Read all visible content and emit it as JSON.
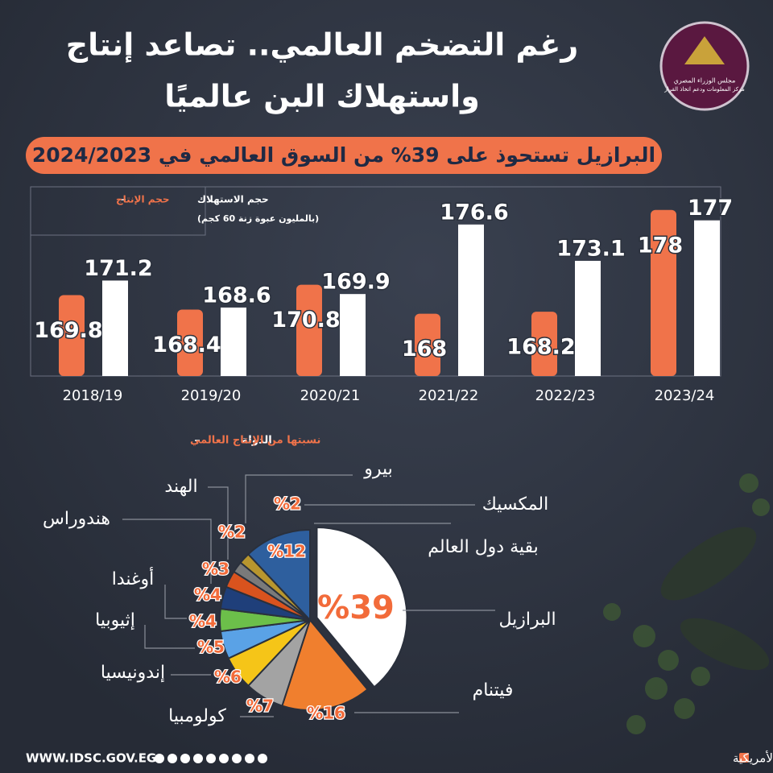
{
  "header": {
    "title_lines": [
      "رغم التضخم العالمي.. تصاعد إنتاج",
      "واستهلاك البن عالميًا"
    ],
    "subtitle": "البرازيل تستحوذ على 39% من السوق العالمي في 2024/2023",
    "logo_lines": [
      "مجلس الوزراء المصري",
      "مركز المعلومات ودعم اتخاذ القرار"
    ]
  },
  "chart_data": [
    {
      "type": "bar",
      "legend_note": "(بالمليون عبوة زنة 60 كجم)",
      "categories": [
        "2018/19",
        "2019/20",
        "2020/21",
        "2021/22",
        "2022/23",
        "2023/24"
      ],
      "series": [
        {
          "name": "حجم الإنتاج",
          "color": "#f0734a",
          "values": [
            169.8,
            168.4,
            170.8,
            168,
            168.2,
            178
          ]
        },
        {
          "name": "حجم الاستهلاك",
          "color": "#ffffff",
          "values": [
            171.2,
            168.6,
            169.9,
            176.6,
            173.1,
            177
          ]
        }
      ],
      "ylim": [
        162,
        180
      ]
    },
    {
      "type": "pie",
      "title_parts": [
        "الدولة",
        "نسبتها من الإنتاج العالمي"
      ],
      "categories": [
        "البرازيل",
        "فيتنام",
        "كولومبيا",
        "إندونيسيا",
        "إثيوبيا",
        "أوغندا",
        "هندوراس",
        "الهند",
        "بيرو",
        "المكسيك",
        "بقية دول العالم"
      ],
      "values": [
        39,
        16,
        7,
        6,
        5,
        4,
        4,
        3,
        2,
        2,
        12
      ],
      "value_labels": [
        "%39",
        "%16",
        "%7",
        "%6",
        "%5",
        "%4",
        "%4",
        "%3",
        "%2",
        "%2",
        "%12"
      ],
      "colors": [
        "#ffffff",
        "#f07f2e",
        "#a3a3a3",
        "#f5c518",
        "#5aa2e6",
        "#6cbf4a",
        "#1f3f7a",
        "#d9531e",
        "#7a7a7a",
        "#b8962e",
        "#2e5f9e"
      ]
    }
  ],
  "footer": {
    "website": "WWW.IDSC.GOV.EG",
    "source": "المصدر: المنظمة العالمية للقهوة ووزارة الزراعة الأمريكية"
  }
}
